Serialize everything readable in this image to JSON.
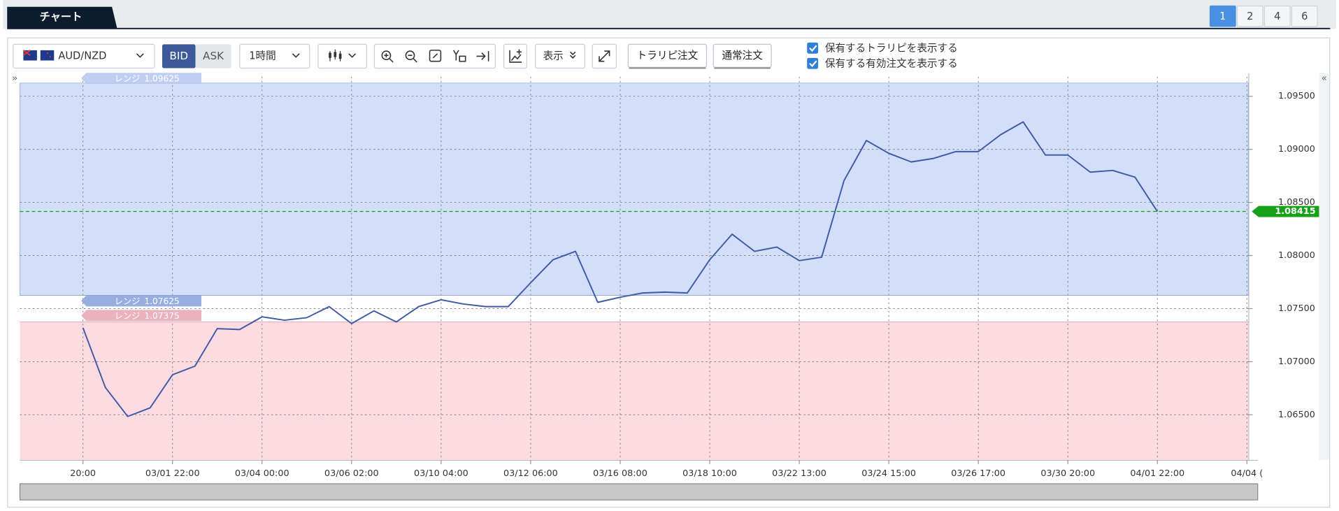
{
  "header": {
    "tab": "チャート",
    "pages": [
      "1",
      "2",
      "4",
      "6"
    ],
    "active_page": 0
  },
  "toolbar": {
    "symbol": "AUD/NZD",
    "bid": "BID",
    "ask": "ASK",
    "interval": "1時間",
    "display": "表示",
    "order_buttons": [
      "トラリピ注文",
      "通常注文"
    ],
    "checkboxes": [
      "保有するトラリピを表示する",
      "保有する有効注文を表示する"
    ]
  },
  "chart_data": {
    "type": "line",
    "series": [
      {
        "color": "#3f5aa6",
        "x": [
          0,
          0.25,
          0.5,
          0.75,
          1,
          1.25,
          1.5,
          1.75,
          2,
          2.25,
          2.5,
          2.75,
          3,
          3.25,
          3.5,
          3.75,
          4,
          4.25,
          4.5,
          4.75,
          5,
          5.25,
          5.5,
          5.75,
          6,
          6.25,
          6.5,
          6.75,
          7,
          7.25,
          7.5,
          7.75,
          8,
          8.25,
          8.5,
          8.75,
          9,
          9.25,
          9.5,
          9.75,
          10,
          10.25,
          10.5,
          10.75,
          11,
          11.25,
          11.5,
          11.75,
          12
        ],
        "values": [
          1.07319,
          1.06757,
          1.06484,
          1.06565,
          1.06877,
          1.06958,
          1.07311,
          1.07303,
          1.07423,
          1.07391,
          1.07415,
          1.07519,
          1.07359,
          1.07479,
          1.07375,
          1.07519,
          1.07583,
          1.07543,
          1.07519,
          1.07519,
          1.07744,
          1.0796,
          1.0804,
          1.07559,
          1.07607,
          1.07647,
          1.07655,
          1.07647,
          1.0796,
          1.08201,
          1.0804,
          1.0808,
          1.07952,
          1.07984,
          1.08706,
          1.09083,
          1.08963,
          1.08882,
          1.08915,
          1.08979,
          1.08979,
          1.09139,
          1.09259,
          1.08947,
          1.08947,
          1.08786,
          1.08802,
          1.08738,
          1.08415
        ]
      }
    ],
    "xlim": [
      -0.704,
      13.016
    ],
    "ylim": [
      1.06075,
      1.09685
    ],
    "xticks": [
      {
        "value": 0,
        "label": "20:00"
      },
      {
        "value": 1,
        "label": "03/01 22:00"
      },
      {
        "value": 2,
        "label": "03/04 00:00"
      },
      {
        "value": 3,
        "label": "03/06 02:00"
      },
      {
        "value": 4,
        "label": "03/10 04:00"
      },
      {
        "value": 5,
        "label": "03/12 06:00"
      },
      {
        "value": 6,
        "label": "03/16 08:00"
      },
      {
        "value": 7,
        "label": "03/18 10:00"
      },
      {
        "value": 8,
        "label": "03/22 13:00"
      },
      {
        "value": 9,
        "label": "03/24 15:00"
      },
      {
        "value": 10,
        "label": "03/26 17:00"
      },
      {
        "value": 11,
        "label": "03/30 20:00"
      },
      {
        "value": 12,
        "label": "04/01 22:00"
      },
      {
        "value": 13,
        "label": "04/04 ("
      }
    ],
    "yticks": [
      {
        "value": 1.065,
        "label": "1.06500"
      },
      {
        "value": 1.07,
        "label": "1.07000"
      },
      {
        "value": 1.075,
        "label": "1.07500"
      },
      {
        "value": 1.08,
        "label": "1.08000"
      },
      {
        "value": 1.085,
        "label": "1.08500"
      },
      {
        "value": 1.09,
        "label": "1.09000"
      },
      {
        "value": 1.095,
        "label": "1.09500"
      }
    ],
    "grid": true,
    "current_price": {
      "value": 1.08415,
      "color": "#17a11a"
    },
    "ranges": [
      {
        "label": "レンジ",
        "value": 1.09625,
        "color": "#b9caf0"
      },
      {
        "label": "レンジ",
        "value": 1.07625,
        "color": "#8ea5dd"
      },
      {
        "label": "レンジ",
        "value": 1.07375,
        "color": "#e9a9b7"
      }
    ],
    "band_colors": [
      "#d3dff9",
      "#fddbe1"
    ]
  }
}
